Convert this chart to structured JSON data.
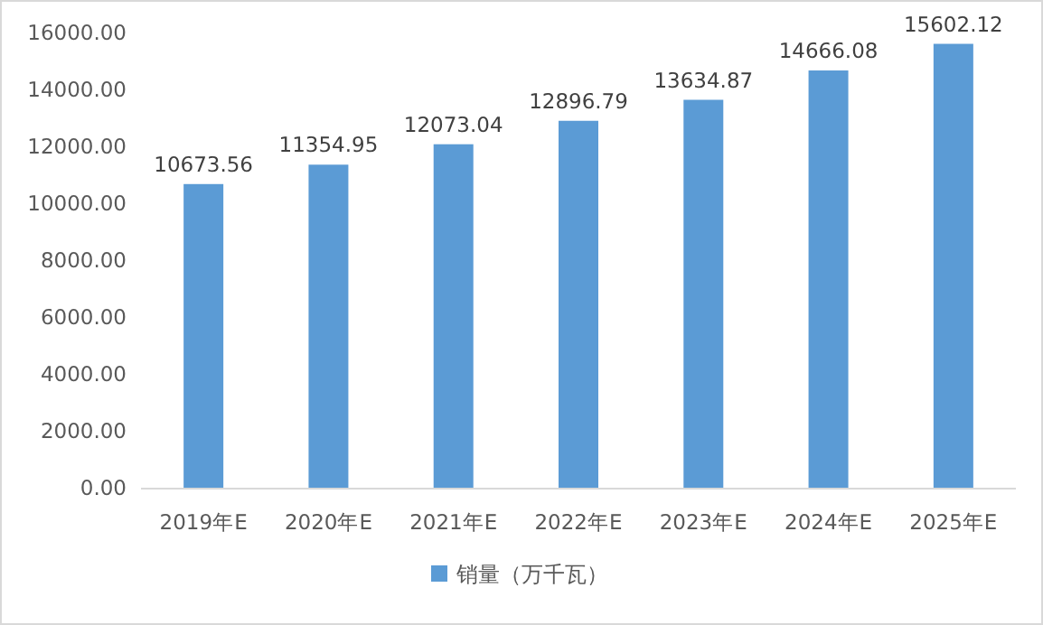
{
  "chart_data": {
    "type": "bar",
    "categories": [
      "2019年E",
      "2020年E",
      "2021年E",
      "2022年E",
      "2023年E",
      "2024年E",
      "2025年E"
    ],
    "series": [
      {
        "name": "销量（万千瓦）",
        "color": "#5b9bd5",
        "values": [
          10673.56,
          11354.95,
          12073.04,
          12896.79,
          13634.87,
          14666.08,
          15602.12
        ]
      }
    ],
    "ylim": [
      0,
      16000
    ],
    "yticks": [
      {
        "value": 0,
        "label": "0.00"
      },
      {
        "value": 2000,
        "label": "2000.00"
      },
      {
        "value": 4000,
        "label": "4000.00"
      },
      {
        "value": 6000,
        "label": "6000.00"
      },
      {
        "value": 8000,
        "label": "8000.00"
      },
      {
        "value": 10000,
        "label": "10000.00"
      },
      {
        "value": 12000,
        "label": "12000.00"
      },
      {
        "value": 14000,
        "label": "14000.00"
      },
      {
        "value": 16000,
        "label": "16000.00"
      }
    ],
    "data_labels": true,
    "legend": "bottom",
    "grid": false
  }
}
